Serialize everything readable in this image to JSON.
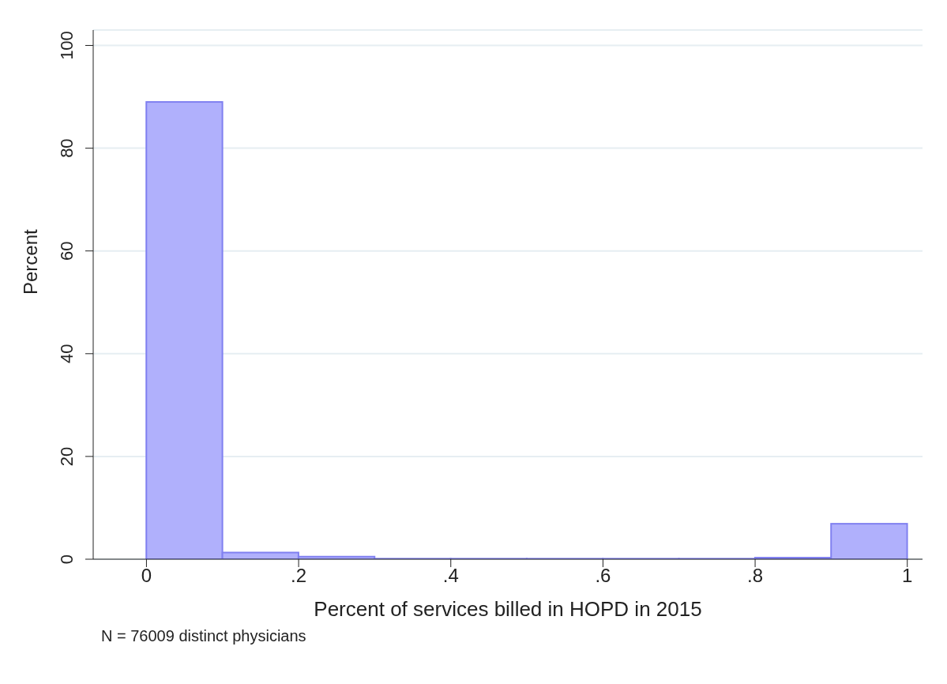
{
  "chart_data": {
    "type": "histogram",
    "xlabel": "Percent of services billed in HOPD in 2015",
    "ylabel": "Percent",
    "bins": [
      0,
      0.1,
      0.2,
      0.3,
      0.4,
      0.5,
      0.6,
      0.7,
      0.8,
      0.9,
      1
    ],
    "values": [
      89,
      1.3,
      0.5,
      0.1,
      0.1,
      0.1,
      0.1,
      0.1,
      0.3,
      6.9
    ],
    "color": "#b0b0fc",
    "xlim": [
      -0.07,
      1.02
    ],
    "ylim": [
      0,
      103
    ],
    "xticks": [
      0,
      {
        "value": 0.2,
        "label": ".2"
      },
      {
        "value": 0.4,
        "label": ".4"
      },
      {
        "value": 0.6,
        "label": ".6"
      },
      {
        "value": 0.8,
        "label": ".8"
      },
      1
    ],
    "yticks": [
      0,
      20,
      40,
      60,
      80,
      100
    ],
    "grid": "y",
    "annotations": [
      "N = 76009 distinct physicians"
    ]
  }
}
